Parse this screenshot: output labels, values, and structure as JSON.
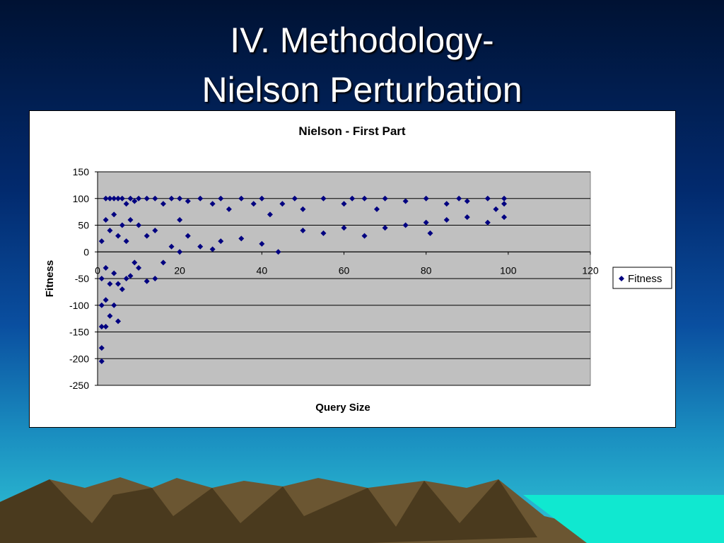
{
  "title": [
    "IV. Methodology-",
    "Nielson Perturbation"
  ],
  "chart_data": {
    "type": "scatter",
    "title": "Nielson - First Part",
    "x_label": "Query Size",
    "y_label": "Fitness",
    "xlim": [
      0,
      120
    ],
    "ylim": [
      -250,
      150
    ],
    "xticks": [
      0,
      20,
      40,
      60,
      80,
      100,
      120
    ],
    "yticks": [
      -250,
      -200,
      -150,
      -100,
      -50,
      0,
      50,
      100,
      150
    ],
    "grid": true,
    "legend": "right",
    "x": [
      1,
      1,
      1,
      1,
      1,
      1,
      2,
      2,
      2,
      2,
      2,
      3,
      3,
      3,
      3,
      4,
      4,
      4,
      4,
      5,
      5,
      5,
      5,
      6,
      6,
      6,
      7,
      7,
      7,
      8,
      8,
      8,
      9,
      9,
      10,
      10,
      10,
      12,
      12,
      12,
      14,
      14,
      14,
      16,
      16,
      18,
      18,
      20,
      20,
      20,
      22,
      22,
      25,
      25,
      28,
      28,
      30,
      30,
      32,
      35,
      35,
      38,
      40,
      40,
      42,
      44,
      45,
      48,
      50,
      50,
      55,
      55,
      60,
      60,
      62,
      65,
      65,
      68,
      70,
      70,
      75,
      75,
      80,
      80,
      81,
      85,
      85,
      88,
      90,
      90,
      95,
      95,
      97,
      99,
      99,
      99
    ],
    "series": [
      {
        "name": "Fitness",
        "color": "#000080",
        "values": [
          -205,
          -180,
          -140,
          -100,
          -50,
          20,
          100,
          -140,
          -90,
          -30,
          60,
          100,
          -120,
          -60,
          40,
          100,
          -100,
          -40,
          70,
          100,
          -130,
          -60,
          30,
          100,
          -70,
          50,
          90,
          -50,
          20,
          100,
          -45,
          60,
          95,
          -20,
          100,
          -30,
          50,
          100,
          -55,
          30,
          100,
          -50,
          40,
          90,
          -20,
          100,
          10,
          100,
          0,
          60,
          95,
          30,
          100,
          10,
          90,
          5,
          100,
          20,
          80,
          100,
          25,
          90,
          100,
          15,
          70,
          0,
          90,
          100,
          80,
          40,
          100,
          35,
          90,
          45,
          100,
          100,
          30,
          80,
          100,
          45,
          95,
          50,
          100,
          55,
          35,
          90,
          60,
          100,
          95,
          65,
          100,
          55,
          80,
          100,
          90,
          65
        ]
      }
    ]
  }
}
